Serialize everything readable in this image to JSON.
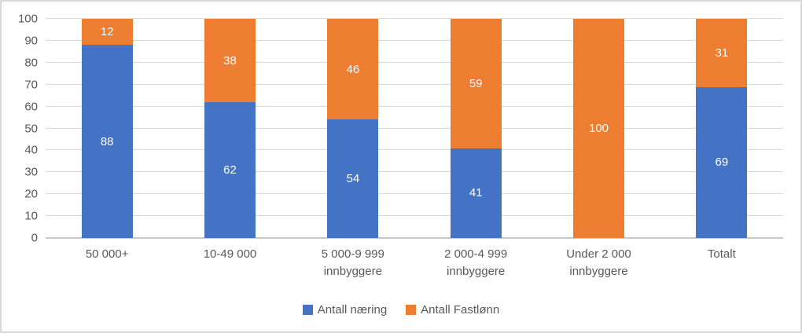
{
  "chart_data": {
    "type": "bar",
    "stacked": true,
    "title": "",
    "xlabel": "",
    "ylabel": "",
    "categories": [
      "50 000+",
      "10-49 000",
      "5 000-9 999 innbyggere",
      "2 000-4 999 innbyggere",
      "Under 2 000 innbyggere",
      "Totalt"
    ],
    "series": [
      {
        "name": "Antall næring",
        "color": "#4472C4",
        "values": [
          88,
          62,
          54,
          41,
          0,
          69
        ]
      },
      {
        "name": "Antall Fastlønn",
        "color": "#ED7D31",
        "values": [
          12,
          38,
          46,
          59,
          100,
          31
        ]
      }
    ],
    "ylim": [
      0,
      100
    ],
    "yticks": [
      0,
      10,
      20,
      30,
      40,
      50,
      60,
      70,
      80,
      90,
      100
    ],
    "grid": true,
    "data_labels": true,
    "legend_position": "bottom"
  },
  "colors": {
    "series_blue": "#4472C4",
    "series_orange": "#ED7D31",
    "gridline": "#D9D9D9",
    "axis_line": "#C8C8C8",
    "text": "#595959",
    "data_label_text": "#FFFFFF",
    "background": "#FFFFFF",
    "chart_border": "#D9D9D9"
  }
}
